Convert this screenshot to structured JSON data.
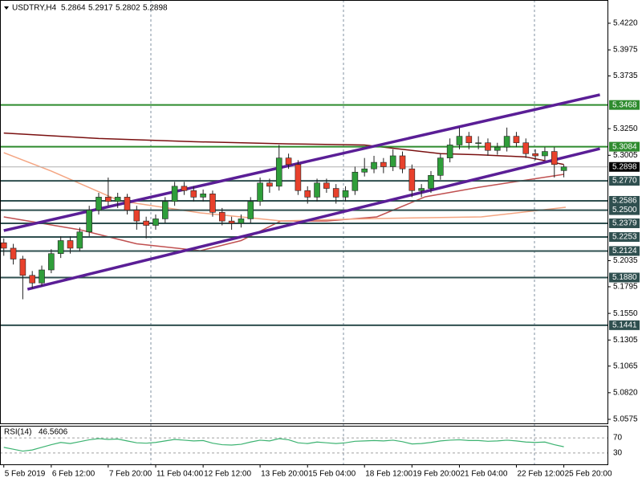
{
  "chart_data": {
    "type": "candlestick",
    "symbol": "USDTRY,H4",
    "up_color": "#2f9e3a",
    "down_color": "#e8412c",
    "candles": [
      [
        5.22,
        5.224,
        5.208,
        5.215
      ],
      [
        5.215,
        5.219,
        5.2,
        5.205
      ],
      [
        5.205,
        5.208,
        5.168,
        5.19
      ],
      [
        5.19,
        5.194,
        5.178,
        5.183
      ],
      [
        5.183,
        5.199,
        5.18,
        5.195
      ],
      [
        5.195,
        5.214,
        5.192,
        5.21
      ],
      [
        5.21,
        5.226,
        5.206,
        5.222
      ],
      [
        5.222,
        5.226,
        5.21,
        5.215
      ],
      [
        5.215,
        5.234,
        5.212,
        5.23
      ],
      [
        5.23,
        5.254,
        5.226,
        5.25
      ],
      [
        5.25,
        5.266,
        5.246,
        5.262
      ],
      [
        5.262,
        5.28,
        5.254,
        5.258
      ],
      [
        5.258,
        5.266,
        5.252,
        5.262
      ],
      [
        5.262,
        5.265,
        5.246,
        5.25
      ],
      [
        5.25,
        5.254,
        5.232,
        5.24
      ],
      [
        5.24,
        5.244,
        5.224,
        5.236
      ],
      [
        5.236,
        5.246,
        5.232,
        5.242
      ],
      [
        5.242,
        5.262,
        5.238,
        5.258
      ],
      [
        5.258,
        5.276,
        5.254,
        5.272
      ],
      [
        5.272,
        5.276,
        5.264,
        5.268
      ],
      [
        5.268,
        5.272,
        5.258,
        5.262
      ],
      [
        5.262,
        5.269,
        5.258,
        5.265
      ],
      [
        5.265,
        5.268,
        5.244,
        5.248
      ],
      [
        5.248,
        5.252,
        5.236,
        5.24
      ],
      [
        5.24,
        5.244,
        5.232,
        5.238
      ],
      [
        5.238,
        5.246,
        5.234,
        5.242
      ],
      [
        5.242,
        5.262,
        5.238,
        5.258
      ],
      [
        5.258,
        5.28,
        5.254,
        5.275
      ],
      [
        5.275,
        5.279,
        5.266,
        5.272
      ],
      [
        5.272,
        5.31,
        5.268,
        5.298
      ],
      [
        5.298,
        5.302,
        5.288,
        5.292
      ],
      [
        5.292,
        5.296,
        5.264,
        5.268
      ],
      [
        5.268,
        5.272,
        5.256,
        5.262
      ],
      [
        5.262,
        5.279,
        5.258,
        5.275
      ],
      [
        5.275,
        5.279,
        5.266,
        5.27
      ],
      [
        5.27,
        5.274,
        5.256,
        5.262
      ],
      [
        5.262,
        5.272,
        5.258,
        5.268
      ],
      [
        5.268,
        5.29,
        5.264,
        5.285
      ],
      [
        5.285,
        5.298,
        5.281,
        5.288
      ],
      [
        5.288,
        5.3,
        5.284,
        5.294
      ],
      [
        5.294,
        5.298,
        5.284,
        5.29
      ],
      [
        5.29,
        5.306,
        5.286,
        5.3
      ],
      [
        5.3,
        5.304,
        5.284,
        5.288
      ],
      [
        5.288,
        5.292,
        5.262,
        5.268
      ],
      [
        5.268,
        5.274,
        5.262,
        5.27
      ],
      [
        5.27,
        5.286,
        5.266,
        5.282
      ],
      [
        5.282,
        5.302,
        5.278,
        5.298
      ],
      [
        5.298,
        5.316,
        5.294,
        5.31
      ],
      [
        5.31,
        5.326,
        5.306,
        5.318
      ],
      [
        5.318,
        5.322,
        5.306,
        5.312
      ],
      [
        5.312,
        5.318,
        5.306,
        5.312
      ],
      [
        5.312,
        5.316,
        5.3,
        5.305
      ],
      [
        5.305,
        5.312,
        5.301,
        5.308
      ],
      [
        5.308,
        5.326,
        5.304,
        5.318
      ],
      [
        5.318,
        5.322,
        5.308,
        5.312
      ],
      [
        5.312,
        5.316,
        5.298,
        5.302
      ],
      [
        5.302,
        5.306,
        5.296,
        5.3
      ],
      [
        5.3,
        5.308,
        5.296,
        5.304
      ],
      [
        5.304,
        5.308,
        5.28,
        5.292
      ],
      [
        5.2864,
        5.2917,
        5.2802,
        5.2898
      ]
    ],
    "xlim": [
      -0.4,
      63.6
    ],
    "xticks": [
      {
        "value": 0,
        "label": "5 Feb 2019"
      },
      {
        "value": 5,
        "label": "6 Feb 12:00"
      },
      {
        "value": 11,
        "label": "7 Feb 20:00"
      },
      {
        "value": 16,
        "label": "11 Feb 04:00"
      },
      {
        "value": 21,
        "label": "12 Feb 12:00"
      },
      {
        "value": 27,
        "label": "13 Feb 20:00"
      },
      {
        "value": 32,
        "label": "15 Feb 04:00"
      },
      {
        "value": 38,
        "label": "18 Feb 12:00"
      },
      {
        "value": 43,
        "label": "19 Feb 20:00"
      },
      {
        "value": 48,
        "label": "21 Feb 04:00"
      },
      {
        "value": 54,
        "label": "22 Feb 12:00"
      },
      {
        "value": 59,
        "label": "25 Feb 20:00"
      }
    ],
    "ylim": [
      5.0538,
      5.4434
    ],
    "yticks": [
      {
        "value": 5.422,
        "label": "5.4220"
      },
      5.3975,
      5.3735,
      {
        "value": 5.325,
        "label": "5.3250"
      },
      5.3005,
      5.2035,
      5.1795,
      {
        "value": 5.155,
        "label": "5.1550"
      },
      5.1305,
      5.1065,
      {
        "value": 5.082,
        "label": "5.0820"
      },
      5.0575
    ],
    "price_line_color": "#000000",
    "levels": [
      {
        "value": 5.3468,
        "color": "#2e8b2e"
      },
      {
        "value": 5.3084,
        "color": "#2e8b2e"
      },
      {
        "value": 5.277,
        "label": "5.2770",
        "color": "#2f4f4f"
      },
      {
        "value": 5.2586,
        "color": "#2f4f4f"
      },
      {
        "value": 5.25,
        "label": "5.2500",
        "color": "#2f4f4f"
      },
      {
        "value": 5.2379,
        "color": "#2f4f4f"
      },
      {
        "value": 5.2253,
        "color": "#2f4f4f"
      },
      {
        "value": 5.2124,
        "color": "#2f4f4f"
      },
      {
        "value": 5.188,
        "label": "5.1880",
        "color": "#2f4f4f"
      },
      {
        "value": 5.1441,
        "color": "#2f4f4f"
      }
    ],
    "trendlines": [
      {
        "from": [
          0,
          5.2312
        ],
        "to": [
          62.8,
          5.3562
        ],
        "color": "#5a1e96"
      },
      {
        "from": [
          2.5,
          5.1772
        ],
        "to": [
          62.8,
          5.3066
        ],
        "color": "#5a1e96"
      }
    ],
    "moving_averages": [
      {
        "color": "#7a1010",
        "x": [
          0,
          10,
          20,
          30,
          38,
          42,
          46,
          50,
          55,
          59
        ],
        "values": [
          5.321,
          5.316,
          5.313,
          5.311,
          5.31,
          5.306,
          5.302,
          5.301,
          5.299,
          5.292
        ]
      },
      {
        "color": "#c05050",
        "x": [
          0,
          8,
          14,
          20.7,
          25,
          29.2,
          34,
          39.3,
          44.4,
          50,
          54.5,
          59
        ],
        "values": [
          5.2438,
          5.232,
          5.219,
          5.2127,
          5.222,
          5.2401,
          5.24,
          5.2438,
          5.2623,
          5.271,
          5.277,
          5.283
        ]
      },
      {
        "color": "#f4a582",
        "x": [
          0,
          5,
          12.2,
          20.7,
          29.2,
          39.3,
          50.3,
          59.2
        ],
        "values": [
          5.3029,
          5.286,
          5.2586,
          5.2475,
          5.2401,
          5.2423,
          5.2438,
          5.2527
        ]
      }
    ],
    "rsi": {
      "label": "RSI(14)",
      "color": "#3cb371",
      "ylim": [
        0,
        100
      ],
      "yticks": [
        30,
        70
      ],
      "values": [
        45,
        40,
        35,
        38,
        45,
        52,
        58,
        55,
        60,
        65,
        68,
        66,
        67,
        62,
        57,
        56,
        58,
        62,
        66,
        64,
        62,
        63,
        56,
        52,
        51,
        53,
        59,
        64,
        62,
        68,
        65,
        57,
        55,
        59,
        57,
        55,
        57,
        61,
        62,
        63,
        62,
        64,
        60,
        54,
        55,
        58,
        62,
        64,
        65,
        63,
        63,
        61,
        62,
        64,
        62,
        59,
        58,
        59,
        52,
        46.5606
      ]
    }
  }
}
